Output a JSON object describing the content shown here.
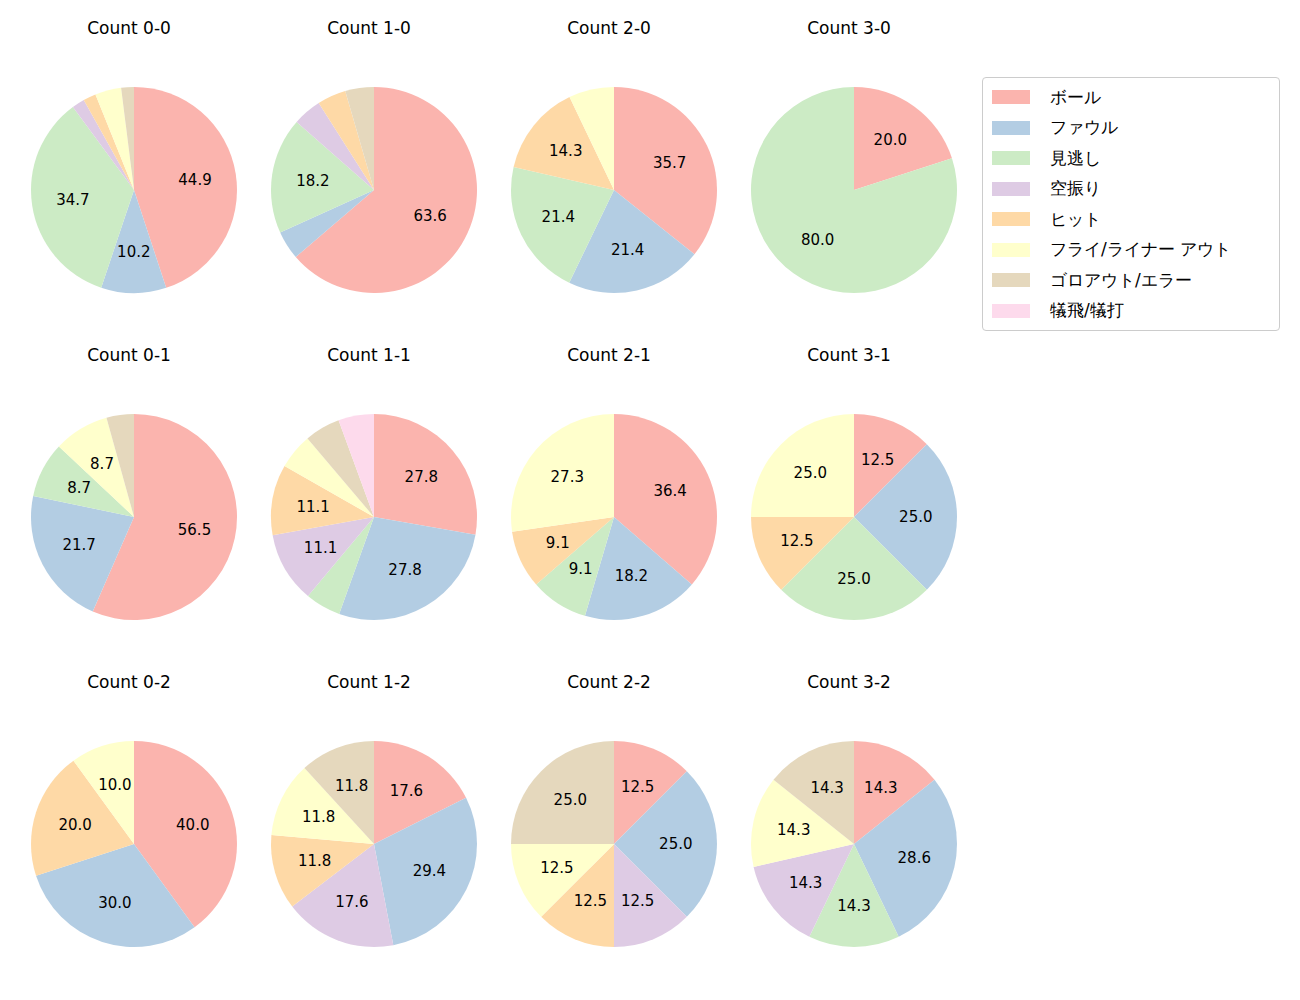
{
  "legend_entries": [
    {
      "name": "ボール",
      "color": "#fbb4ae"
    },
    {
      "name": "ファウル",
      "color": "#b3cde3"
    },
    {
      "name": "見逃し",
      "color": "#ccebc5"
    },
    {
      "name": "空振り",
      "color": "#decbe4"
    },
    {
      "name": "ヒット",
      "color": "#fed9a6"
    },
    {
      "name": "フライ/ライナー アウト",
      "color": "#ffffcc"
    },
    {
      "name": "ゴロアウト/エラー",
      "color": "#e5d8bd"
    },
    {
      "name": "犠飛/犠打",
      "color": "#fddaec"
    }
  ],
  "chart_data": [
    {
      "type": "pie",
      "title": "Count 0-0",
      "data_labels": true,
      "categories": [
        "ボール",
        "ファウル",
        "見逃し",
        "空振り",
        "ヒット",
        "フライ/ライナー アウト",
        "ゴロアウト/エラー"
      ],
      "values": [
        44.9,
        10.2,
        34.7,
        2.0,
        2.0,
        4.1,
        2.0
      ],
      "value_labels": [
        "44.9",
        "10.2",
        "34.7",
        null,
        null,
        null,
        null
      ]
    },
    {
      "type": "pie",
      "title": "Count 1-0",
      "data_labels": true,
      "categories": [
        "ボール",
        "ファウル",
        "見逃し",
        "空振り",
        "ヒット",
        "ゴロアウト/エラー"
      ],
      "values": [
        63.6,
        4.5,
        18.2,
        4.5,
        4.5,
        4.5
      ],
      "value_labels": [
        "63.6",
        null,
        "18.2",
        null,
        null,
        null
      ]
    },
    {
      "type": "pie",
      "title": "Count 2-0",
      "data_labels": true,
      "categories": [
        "ボール",
        "ファウル",
        "見逃し",
        "ヒット",
        "フライ/ライナー アウト"
      ],
      "values": [
        35.7,
        21.4,
        21.4,
        14.3,
        7.1
      ],
      "value_labels": [
        "35.7",
        "21.4",
        "21.4",
        "14.3",
        null
      ]
    },
    {
      "type": "pie",
      "title": "Count 3-0",
      "data_labels": true,
      "categories": [
        "ボール",
        "見逃し"
      ],
      "values": [
        20.0,
        80.0
      ],
      "value_labels": [
        "20.0",
        "80.0"
      ]
    },
    {
      "type": "pie",
      "title": "Count 0-1",
      "data_labels": true,
      "categories": [
        "ボール",
        "ファウル",
        "見逃し",
        "フライ/ライナー アウト",
        "ゴロアウト/エラー"
      ],
      "values": [
        56.5,
        21.7,
        8.7,
        8.7,
        4.3
      ],
      "value_labels": [
        "56.5",
        "21.7",
        "8.7",
        "8.7",
        null
      ]
    },
    {
      "type": "pie",
      "title": "Count 1-1",
      "data_labels": true,
      "categories": [
        "ボール",
        "ファウル",
        "見逃し",
        "空振り",
        "ヒット",
        "フライ/ライナー アウト",
        "ゴロアウト/エラー",
        "犠飛/犠打"
      ],
      "values": [
        27.8,
        27.8,
        5.6,
        11.1,
        11.1,
        5.6,
        5.6,
        5.6
      ],
      "value_labels": [
        "27.8",
        "27.8",
        null,
        "11.1",
        "11.1",
        null,
        null,
        null
      ]
    },
    {
      "type": "pie",
      "title": "Count 2-1",
      "data_labels": true,
      "categories": [
        "ボール",
        "ファウル",
        "見逃し",
        "ヒット",
        "フライ/ライナー アウト"
      ],
      "values": [
        36.4,
        18.2,
        9.1,
        9.1,
        27.3
      ],
      "value_labels": [
        "36.4",
        "18.2",
        "9.1",
        "9.1",
        "27.3"
      ]
    },
    {
      "type": "pie",
      "title": "Count 3-1",
      "data_labels": true,
      "categories": [
        "ボール",
        "ファウル",
        "見逃し",
        "ヒット",
        "フライ/ライナー アウト"
      ],
      "values": [
        12.5,
        25.0,
        25.0,
        12.5,
        25.0
      ],
      "value_labels": [
        "12.5",
        "25.0",
        "25.0",
        "12.5",
        "25.0"
      ]
    },
    {
      "type": "pie",
      "title": "Count 0-2",
      "data_labels": true,
      "categories": [
        "ボール",
        "ファウル",
        "ヒット",
        "フライ/ライナー アウト"
      ],
      "values": [
        40.0,
        30.0,
        20.0,
        10.0
      ],
      "value_labels": [
        "40.0",
        "30.0",
        "20.0",
        "10.0"
      ]
    },
    {
      "type": "pie",
      "title": "Count 1-2",
      "data_labels": true,
      "categories": [
        "ボール",
        "ファウル",
        "空振り",
        "ヒット",
        "フライ/ライナー アウト",
        "ゴロアウト/エラー"
      ],
      "values": [
        17.6,
        29.4,
        17.6,
        11.8,
        11.8,
        11.8
      ],
      "value_labels": [
        "17.6",
        "29.4",
        "17.6",
        "11.8",
        "11.8",
        "11.8"
      ]
    },
    {
      "type": "pie",
      "title": "Count 2-2",
      "data_labels": true,
      "categories": [
        "ボール",
        "ファウル",
        "空振り",
        "ヒット",
        "フライ/ライナー アウト",
        "ゴロアウト/エラー"
      ],
      "values": [
        12.5,
        25.0,
        12.5,
        12.5,
        12.5,
        25.0
      ],
      "value_labels": [
        "12.5",
        "25.0",
        "12.5",
        "12.5",
        "12.5",
        "25.0"
      ]
    },
    {
      "type": "pie",
      "title": "Count 3-2",
      "data_labels": true,
      "categories": [
        "ボール",
        "ファウル",
        "見逃し",
        "空振り",
        "フライ/ライナー アウト",
        "ゴロアウト/エラー"
      ],
      "values": [
        14.3,
        28.6,
        14.3,
        14.3,
        14.3,
        14.3
      ],
      "value_labels": [
        "14.3",
        "28.6",
        "14.3",
        "14.3",
        "14.3",
        "14.3"
      ]
    }
  ]
}
